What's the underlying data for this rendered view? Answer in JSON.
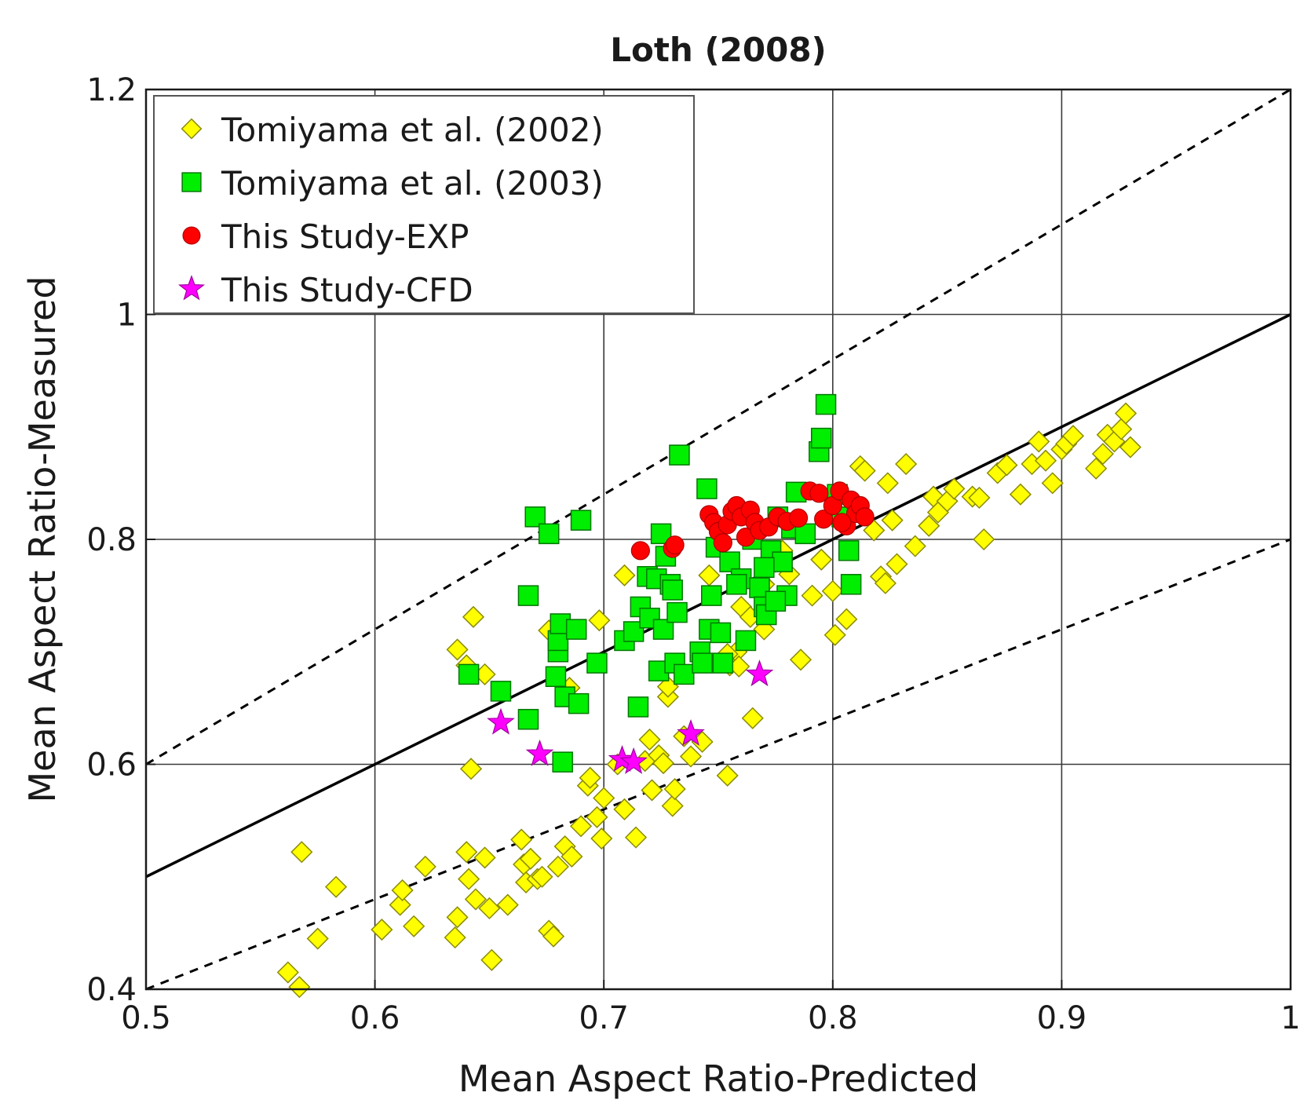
{
  "chart_data": {
    "type": "scatter",
    "title": "Loth (2008)",
    "xlabel": "Mean Aspect Ratio-Predicted",
    "ylabel": "Mean Aspect Ratio-Measured",
    "xlim": [
      0.5,
      1.0
    ],
    "ylim": [
      0.4,
      1.2
    ],
    "grid": true,
    "legend_position": "top-left",
    "x_ticks": [
      0.5,
      0.6,
      0.7,
      0.8,
      0.9,
      1.0
    ],
    "x_tick_labels": [
      "0.5",
      "0.6",
      "0.7",
      "0.8",
      "0.9",
      "1"
    ],
    "y_ticks": [
      0.4,
      0.6,
      0.8,
      1.0,
      1.2
    ],
    "y_tick_labels": [
      "0.4",
      "0.6",
      "0.8",
      "1",
      "1.2"
    ],
    "reference_lines": [
      {
        "name": "parity",
        "style": "solid",
        "points": [
          [
            0.5,
            0.5
          ],
          [
            1.0,
            1.0
          ]
        ]
      },
      {
        "name": "upper-20pct",
        "style": "dashed",
        "points": [
          [
            0.5,
            0.6
          ],
          [
            1.0,
            1.2
          ]
        ]
      },
      {
        "name": "lower-20pct",
        "style": "dashed",
        "points": [
          [
            0.5,
            0.4
          ],
          [
            1.0,
            0.8
          ]
        ]
      }
    ],
    "series": [
      {
        "name": "Tomiyama et al. (2002)",
        "marker": "diamond",
        "color": "#ffff00",
        "edge_color": "#8a8a00",
        "points": [
          [
            0.562,
            0.415
          ],
          [
            0.567,
            0.402
          ],
          [
            0.568,
            0.522
          ],
          [
            0.575,
            0.445
          ],
          [
            0.583,
            0.491
          ],
          [
            0.603,
            0.453
          ],
          [
            0.611,
            0.475
          ],
          [
            0.612,
            0.488
          ],
          [
            0.617,
            0.456
          ],
          [
            0.622,
            0.509
          ],
          [
            0.635,
            0.446
          ],
          [
            0.636,
            0.464
          ],
          [
            0.64,
            0.522
          ],
          [
            0.641,
            0.498
          ],
          [
            0.644,
            0.48
          ],
          [
            0.648,
            0.517
          ],
          [
            0.65,
            0.472
          ],
          [
            0.651,
            0.426
          ],
          [
            0.658,
            0.475
          ],
          [
            0.664,
            0.533
          ],
          [
            0.665,
            0.511
          ],
          [
            0.666,
            0.495
          ],
          [
            0.668,
            0.516
          ],
          [
            0.671,
            0.498
          ],
          [
            0.673,
            0.5
          ],
          [
            0.676,
            0.452
          ],
          [
            0.678,
            0.447
          ],
          [
            0.68,
            0.509
          ],
          [
            0.683,
            0.527
          ],
          [
            0.686,
            0.518
          ],
          [
            0.69,
            0.545
          ],
          [
            0.693,
            0.581
          ],
          [
            0.694,
            0.588
          ],
          [
            0.697,
            0.553
          ],
          [
            0.699,
            0.534
          ],
          [
            0.7,
            0.57
          ],
          [
            0.706,
            0.6
          ],
          [
            0.709,
            0.56
          ],
          [
            0.714,
            0.535
          ],
          [
            0.718,
            0.603
          ],
          [
            0.72,
            0.622
          ],
          [
            0.721,
            0.577
          ],
          [
            0.724,
            0.608
          ],
          [
            0.726,
            0.601
          ],
          [
            0.728,
            0.66
          ],
          [
            0.73,
            0.563
          ],
          [
            0.731,
            0.578
          ],
          [
            0.735,
            0.625
          ],
          [
            0.738,
            0.607
          ],
          [
            0.743,
            0.62
          ],
          [
            0.754,
            0.59
          ],
          [
            0.755,
            0.688
          ],
          [
            0.758,
            0.7
          ],
          [
            0.76,
            0.74
          ],
          [
            0.765,
            0.641
          ],
          [
            0.77,
            0.76
          ],
          [
            0.775,
            0.78
          ],
          [
            0.778,
            0.79
          ],
          [
            0.781,
            0.769
          ],
          [
            0.786,
            0.693
          ],
          [
            0.791,
            0.75
          ],
          [
            0.795,
            0.782
          ],
          [
            0.8,
            0.754
          ],
          [
            0.801,
            0.715
          ],
          [
            0.806,
            0.729
          ],
          [
            0.812,
            0.865
          ],
          [
            0.814,
            0.861
          ],
          [
            0.818,
            0.808
          ],
          [
            0.821,
            0.767
          ],
          [
            0.823,
            0.761
          ],
          [
            0.824,
            0.85
          ],
          [
            0.826,
            0.817
          ],
          [
            0.828,
            0.778
          ],
          [
            0.832,
            0.867
          ],
          [
            0.836,
            0.794
          ],
          [
            0.842,
            0.812
          ],
          [
            0.844,
            0.838
          ],
          [
            0.846,
            0.824
          ],
          [
            0.85,
            0.834
          ],
          [
            0.853,
            0.845
          ],
          [
            0.861,
            0.838
          ],
          [
            0.864,
            0.837
          ],
          [
            0.866,
            0.8
          ],
          [
            0.872,
            0.859
          ],
          [
            0.876,
            0.866
          ],
          [
            0.882,
            0.84
          ],
          [
            0.887,
            0.867
          ],
          [
            0.89,
            0.887
          ],
          [
            0.893,
            0.87
          ],
          [
            0.896,
            0.85
          ],
          [
            0.9,
            0.88
          ],
          [
            0.902,
            0.885
          ],
          [
            0.905,
            0.892
          ],
          [
            0.915,
            0.863
          ],
          [
            0.918,
            0.876
          ],
          [
            0.92,
            0.893
          ],
          [
            0.923,
            0.887
          ],
          [
            0.926,
            0.898
          ],
          [
            0.928,
            0.912
          ],
          [
            0.93,
            0.882
          ],
          [
            0.636,
            0.702
          ],
          [
            0.64,
            0.688
          ],
          [
            0.642,
            0.596
          ],
          [
            0.643,
            0.731
          ],
          [
            0.648,
            0.68
          ],
          [
            0.676,
            0.719
          ],
          [
            0.685,
            0.668
          ],
          [
            0.698,
            0.728
          ],
          [
            0.709,
            0.768
          ],
          [
            0.728,
            0.669
          ],
          [
            0.746,
            0.768
          ],
          [
            0.754,
            0.698
          ],
          [
            0.759,
            0.687
          ],
          [
            0.764,
            0.731
          ],
          [
            0.77,
            0.72
          ]
        ]
      },
      {
        "name": "Tomiyama et al. (2003)",
        "marker": "square",
        "color": "#00ee00",
        "edge_color": "#007700",
        "points": [
          [
            0.641,
            0.68
          ],
          [
            0.655,
            0.665
          ],
          [
            0.667,
            0.64
          ],
          [
            0.667,
            0.75
          ],
          [
            0.67,
            0.82
          ],
          [
            0.676,
            0.805
          ],
          [
            0.679,
            0.678
          ],
          [
            0.68,
            0.7
          ],
          [
            0.68,
            0.71
          ],
          [
            0.681,
            0.725
          ],
          [
            0.682,
            0.602
          ],
          [
            0.683,
            0.66
          ],
          [
            0.688,
            0.72
          ],
          [
            0.689,
            0.654
          ],
          [
            0.69,
            0.817
          ],
          [
            0.697,
            0.69
          ],
          [
            0.709,
            0.71
          ],
          [
            0.713,
            0.718
          ],
          [
            0.715,
            0.651
          ],
          [
            0.716,
            0.74
          ],
          [
            0.719,
            0.767
          ],
          [
            0.72,
            0.73
          ],
          [
            0.723,
            0.765
          ],
          [
            0.724,
            0.683
          ],
          [
            0.725,
            0.805
          ],
          [
            0.726,
            0.72
          ],
          [
            0.727,
            0.785
          ],
          [
            0.729,
            0.76
          ],
          [
            0.73,
            0.755
          ],
          [
            0.731,
            0.69
          ],
          [
            0.732,
            0.735
          ],
          [
            0.733,
            0.875
          ],
          [
            0.735,
            0.68
          ],
          [
            0.742,
            0.7
          ],
          [
            0.743,
            0.69
          ],
          [
            0.745,
            0.845
          ],
          [
            0.746,
            0.72
          ],
          [
            0.747,
            0.75
          ],
          [
            0.749,
            0.793
          ],
          [
            0.751,
            0.717
          ],
          [
            0.752,
            0.69
          ],
          [
            0.755,
            0.78
          ],
          [
            0.76,
            0.765
          ],
          [
            0.762,
            0.71
          ],
          [
            0.765,
            0.8
          ],
          [
            0.768,
            0.757
          ],
          [
            0.77,
            0.74
          ],
          [
            0.771,
            0.733
          ],
          [
            0.773,
            0.79
          ],
          [
            0.776,
            0.82
          ],
          [
            0.778,
            0.78
          ],
          [
            0.78,
            0.75
          ],
          [
            0.782,
            0.81
          ],
          [
            0.784,
            0.842
          ],
          [
            0.788,
            0.805
          ],
          [
            0.794,
            0.878
          ],
          [
            0.795,
            0.89
          ],
          [
            0.797,
            0.92
          ],
          [
            0.802,
            0.84
          ],
          [
            0.804,
            0.82
          ],
          [
            0.807,
            0.79
          ],
          [
            0.808,
            0.76
          ],
          [
            0.758,
            0.76
          ],
          [
            0.77,
            0.775
          ],
          [
            0.775,
            0.745
          ]
        ]
      },
      {
        "name": "This Study-EXP",
        "marker": "circle",
        "color": "#ff0000",
        "edge_color": "#b00000",
        "points": [
          [
            0.716,
            0.79
          ],
          [
            0.73,
            0.792
          ],
          [
            0.731,
            0.795
          ],
          [
            0.746,
            0.822
          ],
          [
            0.748,
            0.815
          ],
          [
            0.75,
            0.807
          ],
          [
            0.752,
            0.797
          ],
          [
            0.754,
            0.813
          ],
          [
            0.756,
            0.825
          ],
          [
            0.758,
            0.83
          ],
          [
            0.76,
            0.82
          ],
          [
            0.762,
            0.802
          ],
          [
            0.764,
            0.826
          ],
          [
            0.766,
            0.815
          ],
          [
            0.768,
            0.808
          ],
          [
            0.772,
            0.811
          ],
          [
            0.776,
            0.82
          ],
          [
            0.78,
            0.816
          ],
          [
            0.785,
            0.819
          ],
          [
            0.79,
            0.843
          ],
          [
            0.794,
            0.841
          ],
          [
            0.796,
            0.818
          ],
          [
            0.8,
            0.83
          ],
          [
            0.803,
            0.843
          ],
          [
            0.806,
            0.812
          ],
          [
            0.808,
            0.835
          ],
          [
            0.81,
            0.823
          ],
          [
            0.812,
            0.83
          ],
          [
            0.814,
            0.82
          ],
          [
            0.804,
            0.815
          ]
        ]
      },
      {
        "name": "This Study-CFD",
        "marker": "star",
        "color": "#ff00ff",
        "edge_color": "#a000a0",
        "points": [
          [
            0.655,
            0.637
          ],
          [
            0.672,
            0.609
          ],
          [
            0.708,
            0.604
          ],
          [
            0.713,
            0.602
          ],
          [
            0.738,
            0.627
          ],
          [
            0.768,
            0.68
          ]
        ]
      }
    ]
  }
}
